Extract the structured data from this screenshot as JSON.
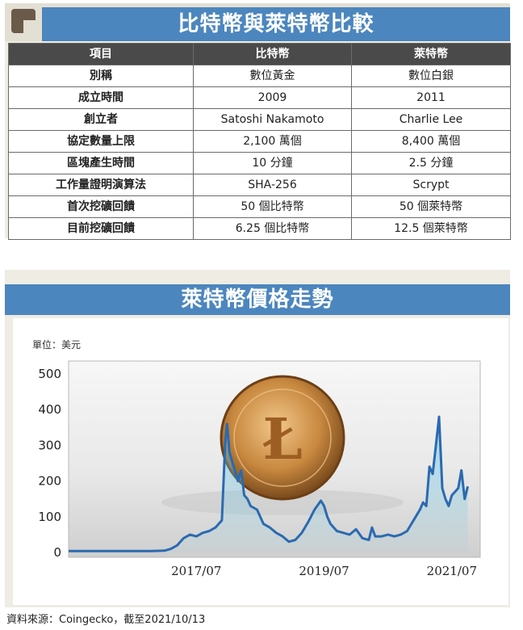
{
  "table": {
    "title": "比特幣與萊特幣比較",
    "headers": [
      "項目",
      "比特幣",
      "萊特幣"
    ],
    "rows": [
      [
        "別稱",
        "數位黃金",
        "數位白銀"
      ],
      [
        "成立時間",
        "2009",
        "2011"
      ],
      [
        "創立者",
        "Satoshi Nakamoto",
        "Charlie Lee"
      ],
      [
        "協定數量上限",
        "2,100 萬個",
        "8,400 萬個"
      ],
      [
        "區塊產生時間",
        "10 分鐘",
        "2.5 分鐘"
      ],
      [
        "工作量證明演算法",
        "SHA-256",
        "Scrypt"
      ],
      [
        "首次挖礦回饋",
        "50 個比特幣",
        "50 個萊特幣"
      ],
      [
        "目前挖礦回饋",
        "6.25 個比特幣",
        "12.5 個萊特幣"
      ]
    ]
  },
  "chart_data": {
    "type": "line",
    "title": "萊特幣價格走勢",
    "unit_label": "單位：美元",
    "ylim": [
      0,
      500
    ],
    "yticks": [
      "500",
      "400",
      "300",
      "200",
      "100",
      "0"
    ],
    "ytick_values": [
      500,
      400,
      300,
      200,
      100,
      0
    ],
    "xticks": [
      "2017/07",
      "2019/07",
      "2021/07"
    ],
    "xtick_values": [
      2017.5,
      2019.5,
      2021.5
    ],
    "xlim": [
      2015.5,
      2021.78
    ],
    "line_color": "#2a6ab0",
    "x": [
      2015.5,
      2016.0,
      2016.5,
      2016.8,
      2017.0,
      2017.1,
      2017.2,
      2017.3,
      2017.4,
      2017.5,
      2017.6,
      2017.7,
      2017.8,
      2017.9,
      2017.95,
      2017.98,
      2018.02,
      2018.1,
      2018.15,
      2018.2,
      2018.25,
      2018.3,
      2018.35,
      2018.45,
      2018.55,
      2018.65,
      2018.75,
      2018.85,
      2018.95,
      2019.05,
      2019.15,
      2019.25,
      2019.35,
      2019.45,
      2019.5,
      2019.55,
      2019.6,
      2019.7,
      2019.8,
      2019.9,
      2020.0,
      2020.1,
      2020.2,
      2020.25,
      2020.3,
      2020.4,
      2020.5,
      2020.6,
      2020.7,
      2020.8,
      2020.9,
      2021.0,
      2021.05,
      2021.1,
      2021.15,
      2021.2,
      2021.25,
      2021.3,
      2021.35,
      2021.4,
      2021.45,
      2021.5,
      2021.55,
      2021.6,
      2021.65,
      2021.7,
      2021.75
    ],
    "y": [
      4,
      4,
      4,
      4,
      5,
      10,
      20,
      40,
      50,
      45,
      55,
      60,
      70,
      90,
      300,
      360,
      280,
      230,
      200,
      230,
      160,
      150,
      130,
      120,
      80,
      70,
      55,
      45,
      30,
      35,
      55,
      85,
      120,
      145,
      130,
      100,
      80,
      60,
      55,
      50,
      65,
      40,
      35,
      70,
      45,
      45,
      50,
      45,
      50,
      60,
      90,
      120,
      140,
      130,
      240,
      220,
      300,
      380,
      180,
      150,
      130,
      160,
      170,
      180,
      230,
      150,
      185
    ]
  },
  "source": "資料來源：Coingecko，截至2021/10/13"
}
